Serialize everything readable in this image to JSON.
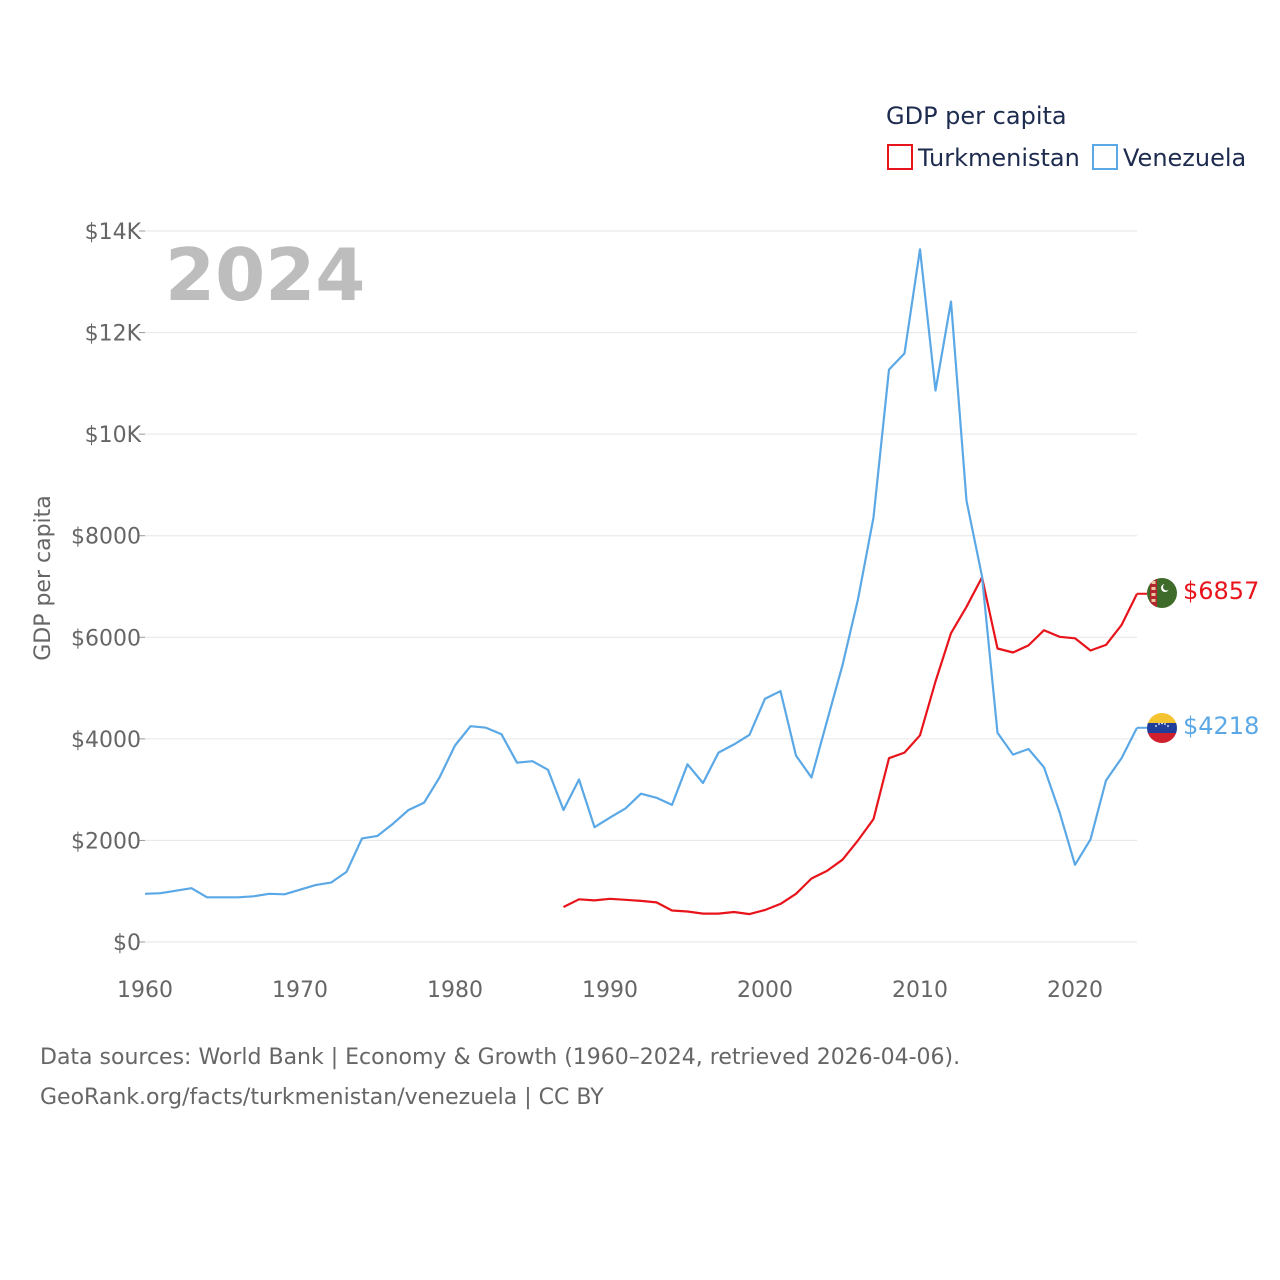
{
  "chart_data": {
    "type": "line",
    "year_label": "2024",
    "legend_title": "GDP per capita",
    "ylabel": "GDP per capita",
    "xlabel": "",
    "xlim": [
      1960,
      2024
    ],
    "ylim": [
      0,
      14000
    ],
    "x_ticks": [
      1960,
      1970,
      1980,
      1990,
      2000,
      2010,
      2020
    ],
    "x_tick_labels": [
      "1960",
      "1970",
      "1980",
      "1990",
      "2000",
      "2010",
      "2020"
    ],
    "y_ticks": [
      0,
      2000,
      4000,
      6000,
      8000,
      10000,
      12000,
      14000
    ],
    "y_tick_labels": [
      "$0",
      "$2000",
      "$4000",
      "$6000",
      "$8000",
      "$10K",
      "$12K",
      "$14K"
    ],
    "grid": true,
    "legend_position": "top-right",
    "series": [
      {
        "name": "Turkmenistan",
        "color": "#e8141b",
        "end_label": "$6857",
        "x": [
          1987,
          1988,
          1989,
          1990,
          1991,
          1992,
          1993,
          1994,
          1995,
          1996,
          1997,
          1998,
          1999,
          2000,
          2001,
          2002,
          2003,
          2004,
          2005,
          2006,
          2007,
          2008,
          2009,
          2010,
          2011,
          2012,
          2013,
          2014,
          2015,
          2016,
          2017,
          2018,
          2019,
          2020,
          2021,
          2022,
          2023,
          2024
        ],
        "values": [
          690,
          840,
          820,
          850,
          830,
          810,
          780,
          620,
          600,
          560,
          560,
          590,
          550,
          630,
          750,
          950,
          1250,
          1400,
          1620,
          2000,
          2420,
          3620,
          3730,
          4070,
          5130,
          6080,
          6600,
          7180,
          5780,
          5700,
          5840,
          6140,
          6010,
          5980,
          5740,
          5850,
          6240,
          6857
        ]
      },
      {
        "name": "Venezuela",
        "color": "#5ba8e6",
        "end_label": "$4218",
        "x": [
          1960,
          1961,
          1962,
          1963,
          1964,
          1965,
          1966,
          1967,
          1968,
          1969,
          1970,
          1971,
          1972,
          1973,
          1974,
          1975,
          1976,
          1977,
          1978,
          1979,
          1980,
          1981,
          1982,
          1983,
          1984,
          1985,
          1986,
          1987,
          1988,
          1989,
          1990,
          1991,
          1992,
          1993,
          1994,
          1995,
          1996,
          1997,
          1998,
          1999,
          2000,
          2001,
          2002,
          2003,
          2004,
          2005,
          2006,
          2007,
          2008,
          2009,
          2010,
          2011,
          2012,
          2013,
          2014,
          2015,
          2016,
          2017,
          2018,
          2019,
          2020,
          2021,
          2022,
          2023,
          2024
        ],
        "values": [
          950,
          960,
          1010,
          1060,
          880,
          880,
          880,
          900,
          950,
          940,
          1030,
          1120,
          1170,
          1380,
          2040,
          2090,
          2330,
          2600,
          2740,
          3240,
          3870,
          4250,
          4220,
          4090,
          3530,
          3560,
          3390,
          2600,
          3200,
          2260,
          2450,
          2630,
          2920,
          2840,
          2700,
          3500,
          3130,
          3730,
          3890,
          4080,
          4790,
          4940,
          3670,
          3240,
          4350,
          5450,
          6750,
          8360,
          11270,
          11590,
          13640,
          10860,
          12610,
          8690,
          7200,
          4120,
          3690,
          3800,
          3440,
          2560,
          1520,
          2020,
          3180,
          3620,
          4218
        ]
      }
    ]
  },
  "source": {
    "line1": "Data sources: World Bank | Economy & Growth (1960–2024, retrieved 2026-04-06).",
    "line2": "GeoRank.org/facts/turkmenistan/venezuela | CC BY"
  }
}
